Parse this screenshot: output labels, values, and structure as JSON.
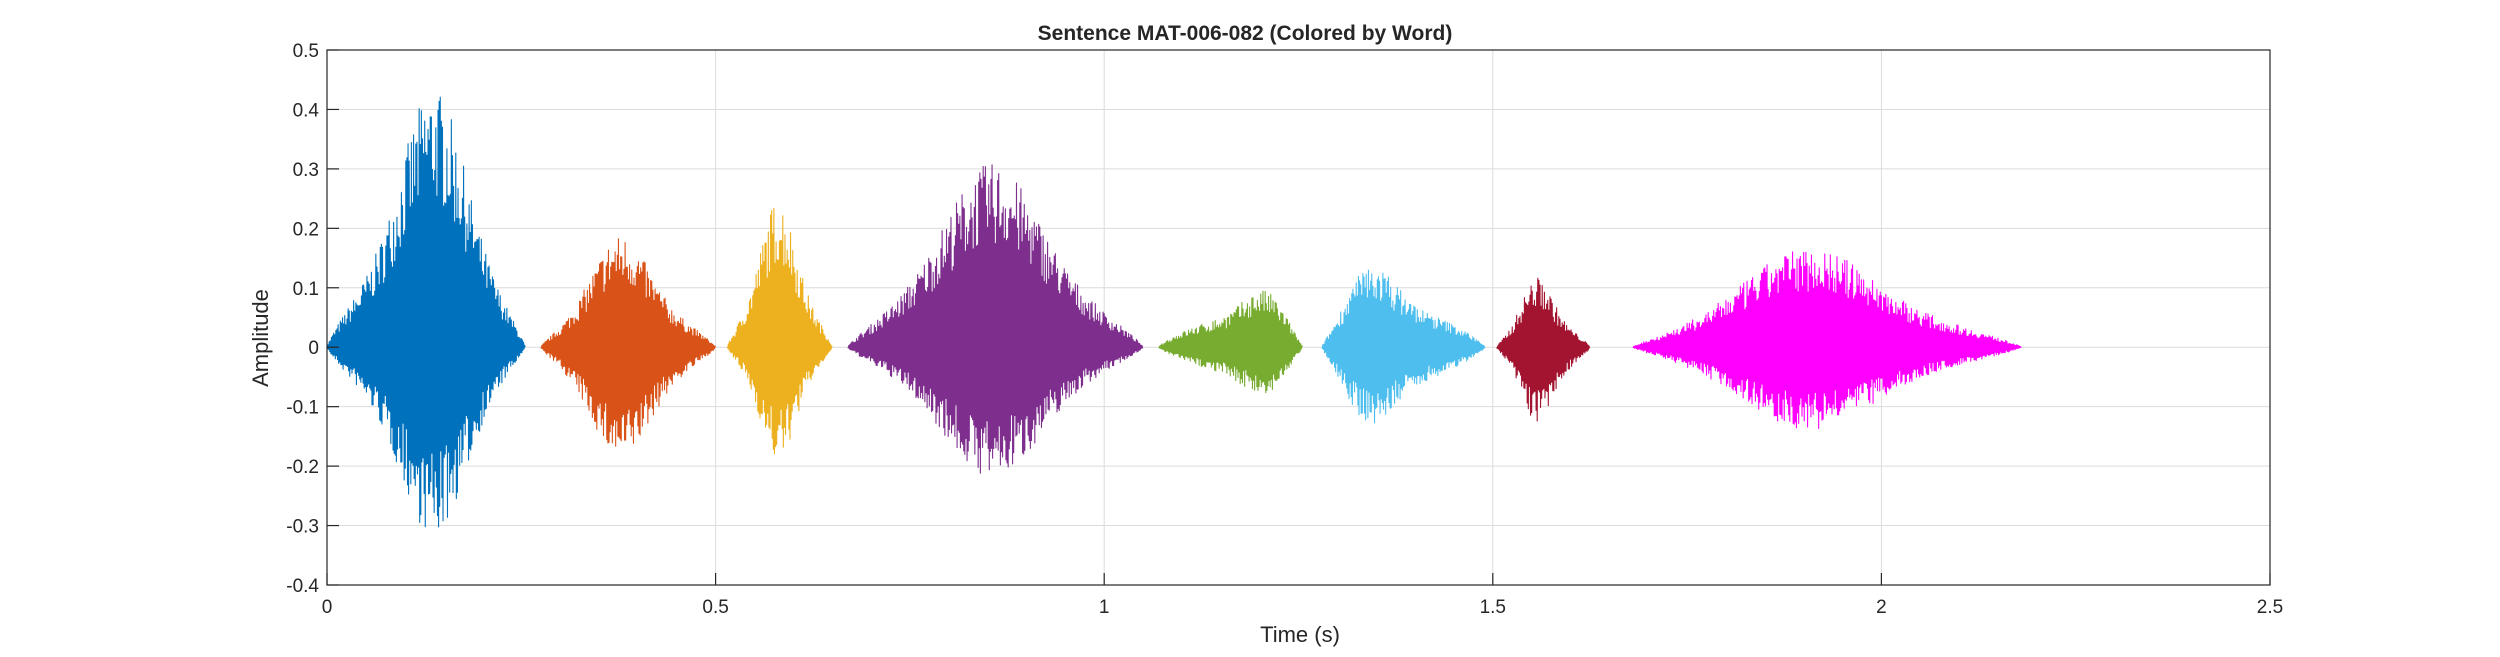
{
  "chart_data": {
    "type": "line",
    "title": "Sentence MAT-006-082 (Colored by Word)",
    "xlabel": "Time (s)",
    "ylabel": "Amplitude",
    "xlim": [
      0,
      2.5
    ],
    "ylim": [
      -0.4,
      0.5
    ],
    "x_ticks": [
      0,
      0.5,
      1,
      1.5,
      2,
      2.5
    ],
    "x_tick_labels": [
      "0",
      "0.5",
      "1",
      "1.5",
      "2",
      "2.5"
    ],
    "y_ticks": [
      0.5,
      0.4,
      0.3,
      0.2,
      0.1,
      0,
      -0.1,
      -0.2,
      -0.3,
      -0.4
    ],
    "y_tick_labels": [
      "0.5",
      "0.4",
      "0.3",
      "0.2",
      "0.1",
      "0",
      "-0.1",
      "-0.2",
      "-0.3",
      "-0.4"
    ],
    "grid": true,
    "legend": false,
    "series": [
      {
        "color": "#0072BD",
        "x_start": 0.0,
        "x_end": 0.255,
        "max": 0.44,
        "min": -0.32,
        "peak_at": 0.14
      },
      {
        "color": "#D95319",
        "x_start": 0.275,
        "x_end": 0.5,
        "max": 0.19,
        "min": -0.19,
        "peak_at": 0.375
      },
      {
        "color": "#EDB120",
        "x_start": 0.515,
        "x_end": 0.65,
        "max": 0.25,
        "min": -0.19,
        "peak_at": 0.58
      },
      {
        "color": "#7E2F8E",
        "x_start": 0.67,
        "x_end": 1.05,
        "max": 0.31,
        "min": -0.22,
        "peak_at": 0.855
      },
      {
        "color": "#77AC30",
        "x_start": 1.07,
        "x_end": 1.255,
        "max": 0.13,
        "min": -0.11,
        "peak_at": 1.22
      },
      {
        "color": "#4DBEEE",
        "x_start": 1.28,
        "x_end": 1.49,
        "max": 0.17,
        "min": -0.16,
        "peak_at": 1.33
      },
      {
        "color": "#A2142F",
        "x_start": 1.505,
        "x_end": 1.625,
        "max": 0.12,
        "min": -0.13,
        "peak_at": 1.555
      },
      {
        "color": "#FF00FF",
        "x_start": 1.68,
        "x_end": 2.18,
        "max": 0.17,
        "min": -0.14,
        "peak_at": 1.9
      }
    ]
  }
}
